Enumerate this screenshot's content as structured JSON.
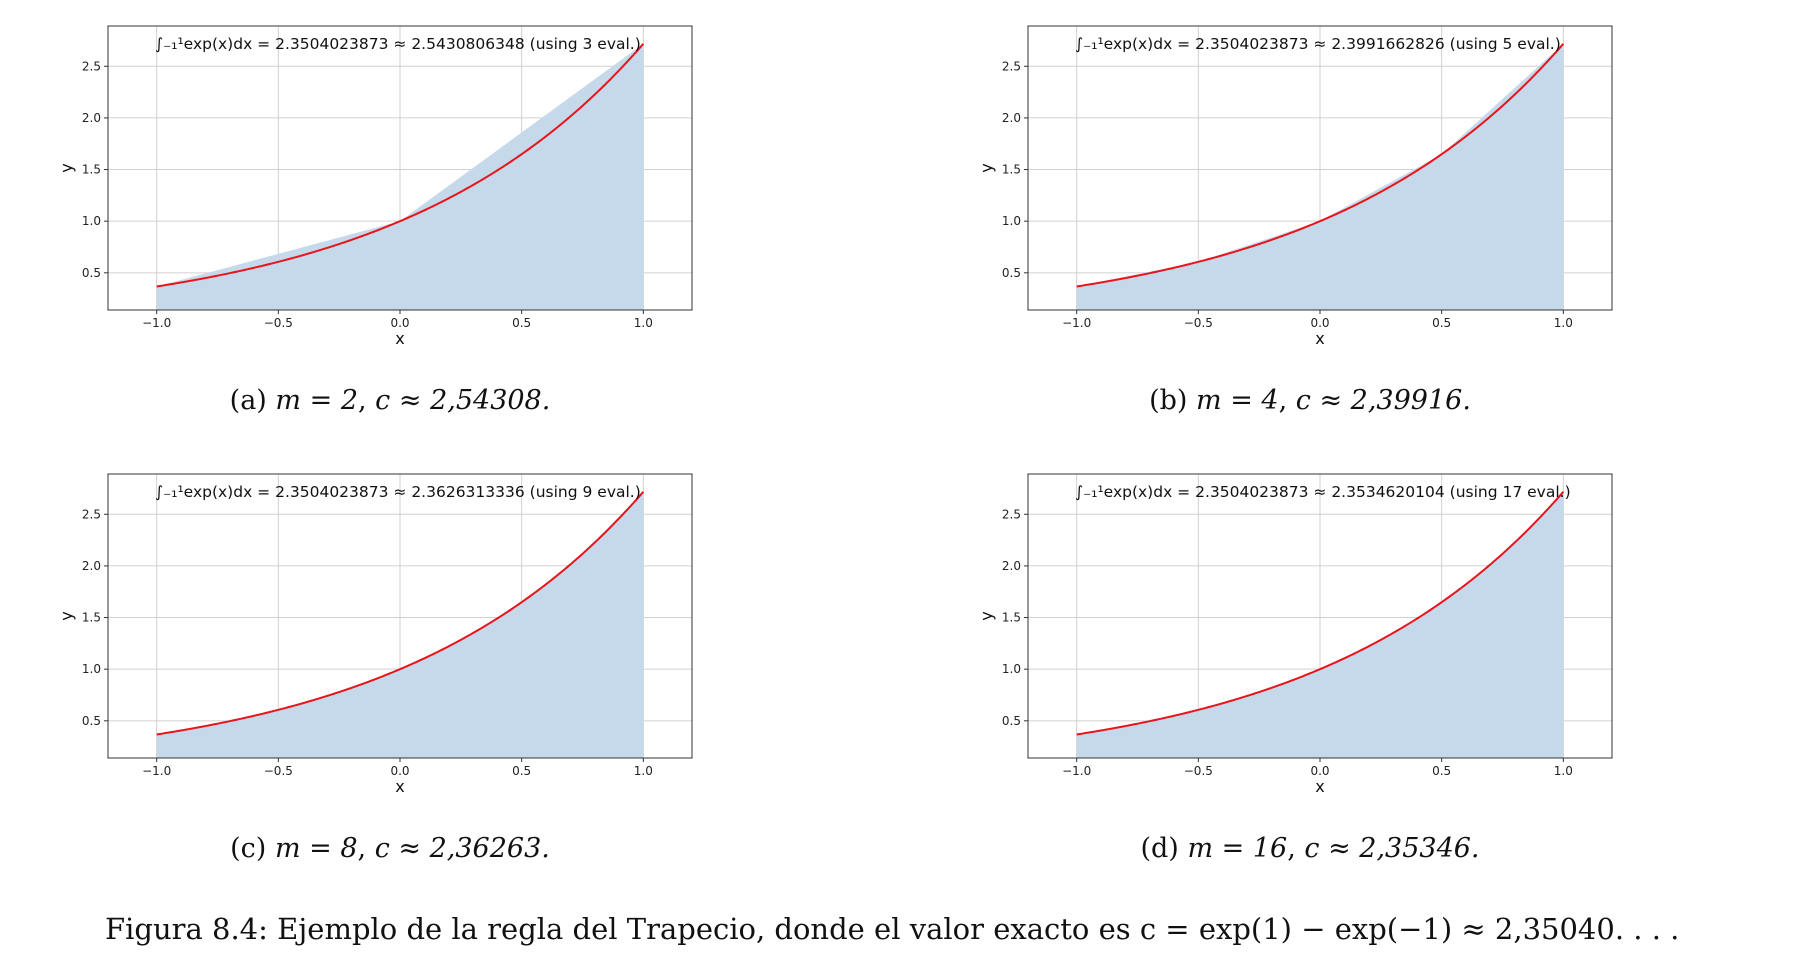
{
  "chart_data": [
    {
      "type": "area",
      "title": "∫₋₁¹exp(x)dx = 2.3504023873 ≈ 2.5430806348 (using 3 eval.)",
      "xlabel": "x",
      "ylabel": "y",
      "xlim": [
        -1.2,
        1.2
      ],
      "ylim": [
        0.14,
        2.89
      ],
      "xticks": [
        "−1.0",
        "−0.5",
        "0.0",
        "0.5",
        "1.0"
      ],
      "yticks": [
        "0.5",
        "1.0",
        "1.5",
        "2.0",
        "2.5"
      ],
      "grid": true,
      "series": [
        {
          "values": [
            0.3679,
            1.0,
            2.7183
          ]
        },
        {
          "function": "exp(x)",
          "x_range": [
            -1,
            1
          ]
        }
      ],
      "x": [
        -1.0,
        0.0,
        1.0
      ],
      "caption": {
        "label": "(a)",
        "m": "m = 2",
        "c": "c ≈ 2,54308."
      }
    },
    {
      "type": "area",
      "title": "∫₋₁¹exp(x)dx = 2.3504023873 ≈ 2.3991662826 (using 5 eval.)",
      "xlabel": "x",
      "ylabel": "y",
      "xlim": [
        -1.2,
        1.2
      ],
      "ylim": [
        0.14,
        2.89
      ],
      "xticks": [
        "−1.0",
        "−0.5",
        "0.0",
        "0.5",
        "1.0"
      ],
      "yticks": [
        "0.5",
        "1.0",
        "1.5",
        "2.0",
        "2.5"
      ],
      "grid": true,
      "series": [
        {
          "values": [
            0.3679,
            0.6065,
            1.0,
            1.6487,
            2.7183
          ]
        },
        {
          "function": "exp(x)",
          "x_range": [
            -1,
            1
          ]
        }
      ],
      "x": [
        -1.0,
        -0.5,
        0.0,
        0.5,
        1.0
      ],
      "caption": {
        "label": "(b)",
        "m": "m = 4",
        "c": "c ≈ 2,39916."
      }
    },
    {
      "type": "area",
      "title": "∫₋₁¹exp(x)dx = 2.3504023873 ≈ 2.3626313336 (using 9 eval.)",
      "xlabel": "x",
      "ylabel": "y",
      "xlim": [
        -1.2,
        1.2
      ],
      "ylim": [
        0.14,
        2.89
      ],
      "xticks": [
        "−1.0",
        "−0.5",
        "0.0",
        "0.5",
        "1.0"
      ],
      "yticks": [
        "0.5",
        "1.0",
        "1.5",
        "2.0",
        "2.5"
      ],
      "grid": true,
      "series": [
        {
          "values": [
            0.3679,
            0.4724,
            0.6065,
            0.7788,
            1.0,
            1.284,
            1.6487,
            2.117,
            2.7183
          ]
        },
        {
          "function": "exp(x)",
          "x_range": [
            -1,
            1
          ]
        }
      ],
      "x": [
        -1.0,
        -0.75,
        -0.5,
        -0.25,
        0.0,
        0.25,
        0.5,
        0.75,
        1.0
      ],
      "caption": {
        "label": "(c)",
        "m": "m = 8",
        "c": "c ≈ 2,36263."
      }
    },
    {
      "type": "area",
      "title": "∫₋₁¹exp(x)dx = 2.3504023873 ≈ 2.3534620104 (using 17 eval.)",
      "xlabel": "x",
      "ylabel": "y",
      "xlim": [
        -1.2,
        1.2
      ],
      "ylim": [
        0.14,
        2.89
      ],
      "xticks": [
        "−1.0",
        "−0.5",
        "0.0",
        "0.5",
        "1.0"
      ],
      "yticks": [
        "0.5",
        "1.0",
        "1.5",
        "2.0",
        "2.5"
      ],
      "grid": true,
      "series": [
        {
          "values": [
            0.3679,
            0.4169,
            0.4724,
            0.5353,
            0.6065,
            0.6873,
            0.7788,
            0.8825,
            1.0,
            1.1331,
            1.284,
            1.455,
            1.6487,
            1.8682,
            2.117,
            2.3989,
            2.7183
          ]
        },
        {
          "function": "exp(x)",
          "x_range": [
            -1,
            1
          ]
        }
      ],
      "x": [
        -1.0,
        -0.875,
        -0.75,
        -0.625,
        -0.5,
        -0.375,
        -0.25,
        -0.125,
        0.0,
        0.125,
        0.25,
        0.375,
        0.5,
        0.625,
        0.75,
        0.875,
        1.0
      ],
      "caption": {
        "label": "(d)",
        "m": "m = 16",
        "c": "c ≈ 2,35346."
      }
    }
  ],
  "colors": {
    "fill": "#c6d9ea",
    "curve": "#e8141b",
    "grid": "#d0d0d0",
    "frame": "#333333"
  },
  "figure_caption": "Figura 8.4: Ejemplo de la regla del Trapecio, donde el valor exacto es c = exp(1) − exp(−1) ≈ 2,35040. . . ."
}
